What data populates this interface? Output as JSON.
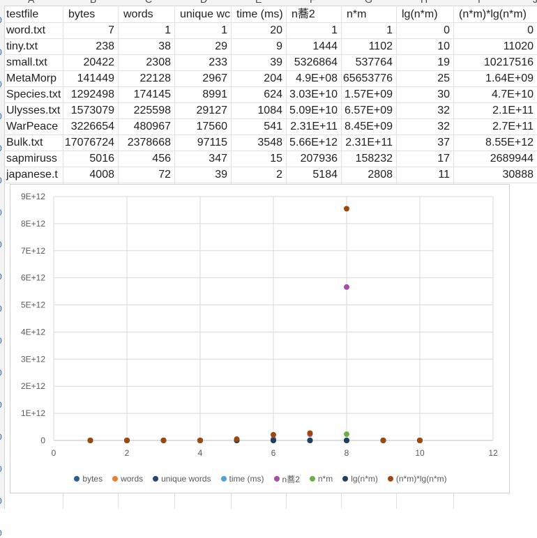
{
  "column_letters": [
    "A",
    "B",
    "C",
    "D",
    "E",
    "F",
    "G",
    "H",
    "I",
    "J"
  ],
  "row_markers": [
    "0",
    "0",
    "0",
    "0",
    "0",
    "0",
    "0",
    "0",
    "0",
    "0",
    "0",
    "0",
    "0",
    "0",
    "0",
    "0",
    "0"
  ],
  "header": [
    "testfile",
    "bytes",
    "words",
    "unique wc",
    "time (ms)",
    "n蕎2",
    "n*m",
    "lg(n*m)",
    "(n*m)*lg(n*m)"
  ],
  "rows": [
    [
      "word.txt",
      "7",
      "1",
      "1",
      "20",
      "1",
      "1",
      "0",
      "0"
    ],
    [
      "tiny.txt",
      "238",
      "38",
      "29",
      "9",
      "1444",
      "1102",
      "10",
      "11020"
    ],
    [
      "small.txt",
      "20422",
      "2308",
      "233",
      "39",
      "5326864",
      "537764",
      "19",
      "10217516"
    ],
    [
      "MetaMorp",
      "141449",
      "22128",
      "2967",
      "204",
      "4.9E+08",
      "65653776",
      "25",
      "1.64E+09"
    ],
    [
      "Species.txt",
      "1292498",
      "174145",
      "8991",
      "624",
      "3.03E+10",
      "1.57E+09",
      "30",
      "4.7E+10"
    ],
    [
      "Ulysses.txt",
      "1573079",
      "225598",
      "29127",
      "1084",
      "5.09E+10",
      "6.57E+09",
      "32",
      "2.1E+11"
    ],
    [
      "WarPeace",
      "3226654",
      "480967",
      "17560",
      "541",
      "2.31E+11",
      "8.45E+09",
      "32",
      "2.7E+11"
    ],
    [
      "Bulk.txt",
      "17076724",
      "2378668",
      "97115",
      "3548",
      "5.66E+12",
      "2.31E+11",
      "37",
      "8.55E+12"
    ],
    [
      "sapmiruss",
      "5016",
      "456",
      "347",
      "15",
      "207936",
      "158232",
      "17",
      "2689944"
    ],
    [
      "japanese.t",
      "4008",
      "72",
      "39",
      "2",
      "5184",
      "2808",
      "11",
      "30888"
    ]
  ],
  "chart_data": {
    "type": "scatter",
    "x_ticks": [
      "0",
      "2",
      "4",
      "6",
      "8",
      "10",
      "12"
    ],
    "y_ticks": [
      "0",
      "1E+12",
      "2E+12",
      "3E+12",
      "4E+12",
      "5E+12",
      "6E+12",
      "7E+12",
      "8E+12",
      "9E+12"
    ],
    "xlim": [
      0,
      12
    ],
    "ylim": [
      0,
      9000000000000.0
    ],
    "grid": true,
    "legend_position": "bottom",
    "x": [
      1,
      2,
      3,
      4,
      5,
      6,
      7,
      8,
      9,
      10
    ],
    "series": [
      {
        "name": "bytes",
        "color": "#255e91",
        "values": [
          7,
          238,
          20422,
          141449,
          1292498,
          1573079,
          3226654,
          17076724,
          5016,
          4008
        ]
      },
      {
        "name": "words",
        "color": "#ed7d31",
        "values": [
          1,
          38,
          2308,
          22128,
          174145,
          225598,
          480967,
          2378668,
          456,
          72
        ]
      },
      {
        "name": "unique words",
        "color": "#264478",
        "values": [
          1,
          29,
          233,
          2967,
          8991,
          29127,
          17560,
          97115,
          347,
          39
        ]
      },
      {
        "name": "time (ms)",
        "color": "#4ea3d9",
        "values": [
          20,
          9,
          39,
          204,
          624,
          1084,
          541,
          3548,
          15,
          2
        ]
      },
      {
        "name": "n蕎2",
        "color": "#a74ea9",
        "values": [
          1,
          1444,
          5326864,
          490000000.0,
          30300000000.0,
          50900000000.0,
          231000000000.0,
          5660000000000.0,
          207936,
          5184
        ]
      },
      {
        "name": "n*m",
        "color": "#70ad47",
        "values": [
          1,
          1102,
          537764,
          65653776,
          1570000000.0,
          6570000000.0,
          8450000000.0,
          231000000000.0,
          158232,
          2808
        ]
      },
      {
        "name": "lg(n*m)",
        "color": "#1f3f5e",
        "values": [
          0,
          10,
          19,
          25,
          30,
          32,
          32,
          37,
          17,
          11
        ]
      },
      {
        "name": "(n*m)*lg(n*m)",
        "color": "#9e480e",
        "values": [
          0,
          11020,
          10217516,
          1640000000.0,
          47000000000.0,
          210000000000.0,
          270000000000.0,
          8550000000000.0,
          2689944,
          30888
        ]
      }
    ]
  }
}
